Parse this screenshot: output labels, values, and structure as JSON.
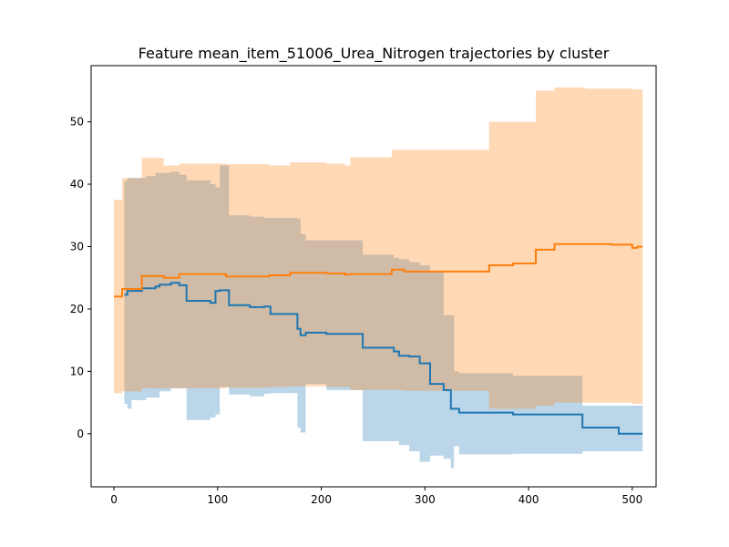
{
  "chart_data": {
    "type": "line",
    "title": "Feature mean_item_51006_Urea_Nitrogen trajectories by cluster",
    "xlabel": "",
    "ylabel": "",
    "xlim": [
      -22,
      523
    ],
    "ylim": [
      -8.5,
      59
    ],
    "xticks": [
      0,
      100,
      200,
      300,
      400,
      500
    ],
    "yticks": [
      0,
      10,
      20,
      30,
      40,
      50
    ],
    "grid": false,
    "series": [
      {
        "color": "#1f77b4",
        "band_color": "#1f77b4",
        "band_opacity": 0.3,
        "steps": [
          {
            "x": 10,
            "mean": 22.3,
            "lower": 4.8,
            "upper": 40.5
          },
          {
            "x": 13,
            "mean": 22.9,
            "lower": 4.0,
            "upper": 41.0
          },
          {
            "x": 17,
            "mean": 22.9,
            "lower": 5.4,
            "upper": 41.0
          },
          {
            "x": 27,
            "mean": 23.3,
            "lower": 5.4,
            "upper": 41.0
          },
          {
            "x": 31,
            "mean": 23.3,
            "lower": 5.8,
            "upper": 41.3
          },
          {
            "x": 40,
            "mean": 23.6,
            "lower": 5.8,
            "upper": 41.8
          },
          {
            "x": 44,
            "mean": 23.9,
            "lower": 6.8,
            "upper": 41.8
          },
          {
            "x": 55,
            "mean": 24.2,
            "lower": 7.3,
            "upper": 42.0
          },
          {
            "x": 63,
            "mean": 23.8,
            "lower": 7.3,
            "upper": 41.5
          },
          {
            "x": 70,
            "mean": 21.3,
            "lower": 2.2,
            "upper": 40.6
          },
          {
            "x": 93,
            "mean": 21.0,
            "lower": 2.6,
            "upper": 40.0
          },
          {
            "x": 98,
            "mean": 22.9,
            "lower": 3.1,
            "upper": 39.5
          },
          {
            "x": 102,
            "mean": 23.0,
            "lower": 7.5,
            "upper": 43.0
          },
          {
            "x": 111,
            "mean": 20.6,
            "lower": 6.3,
            "upper": 35.0
          },
          {
            "x": 131,
            "mean": 20.3,
            "lower": 6.0,
            "upper": 34.8
          },
          {
            "x": 145,
            "mean": 20.4,
            "lower": 6.4,
            "upper": 34.6
          },
          {
            "x": 151,
            "mean": 19.2,
            "lower": 6.5,
            "upper": 34.6
          },
          {
            "x": 177,
            "mean": 16.8,
            "lower": 1.0,
            "upper": 34.5
          },
          {
            "x": 180,
            "mean": 15.8,
            "lower": 0.2,
            "upper": 32.0
          },
          {
            "x": 185,
            "mean": 16.2,
            "lower": 8.0,
            "upper": 31.0
          },
          {
            "x": 205,
            "mean": 16.0,
            "lower": 7.0,
            "upper": 31.0
          },
          {
            "x": 240,
            "mean": 13.8,
            "lower": -1.2,
            "upper": 28.7
          },
          {
            "x": 270,
            "mean": 13.2,
            "lower": -1.2,
            "upper": 28.2
          },
          {
            "x": 275,
            "mean": 12.5,
            "lower": -1.8,
            "upper": 28.0
          },
          {
            "x": 285,
            "mean": 12.4,
            "lower": -2.8,
            "upper": 27.5
          },
          {
            "x": 295,
            "mean": 11.3,
            "lower": -4.5,
            "upper": 27.0
          },
          {
            "x": 305,
            "mean": 8.0,
            "lower": -3.5,
            "upper": 26.0
          },
          {
            "x": 318,
            "mean": 7.0,
            "lower": -4.0,
            "upper": 19.0
          },
          {
            "x": 325,
            "mean": 4.0,
            "lower": -5.5,
            "upper": 19.0
          },
          {
            "x": 328,
            "mean": 4.0,
            "lower": -2.0,
            "upper": 10.0
          },
          {
            "x": 333,
            "mean": 3.4,
            "lower": -3.3,
            "upper": 9.7
          },
          {
            "x": 385,
            "mean": 3.1,
            "lower": -3.2,
            "upper": 9.3
          },
          {
            "x": 452,
            "mean": 1.0,
            "lower": -2.8,
            "upper": 4.5
          },
          {
            "x": 487,
            "mean": 0.0,
            "lower": -2.8,
            "upper": 4.5
          },
          {
            "x": 510,
            "mean": 0.0,
            "lower": 0.0,
            "upper": 0.0
          }
        ]
      },
      {
        "color": "#ff7f0e",
        "band_color": "#ff7f0e",
        "band_opacity": 0.3,
        "steps": [
          {
            "x": 0,
            "mean": 22.0,
            "lower": 6.5,
            "upper": 37.5
          },
          {
            "x": 8,
            "mean": 23.2,
            "lower": 6.8,
            "upper": 41.0
          },
          {
            "x": 27,
            "mean": 25.3,
            "lower": 7.3,
            "upper": 44.2
          },
          {
            "x": 48,
            "mean": 25.0,
            "lower": 7.3,
            "upper": 43.0
          },
          {
            "x": 63,
            "mean": 25.6,
            "lower": 7.3,
            "upper": 43.3
          },
          {
            "x": 108,
            "mean": 25.2,
            "lower": 7.4,
            "upper": 43.2
          },
          {
            "x": 150,
            "mean": 25.4,
            "lower": 7.5,
            "upper": 43.0
          },
          {
            "x": 170,
            "mean": 25.8,
            "lower": 7.6,
            "upper": 43.5
          },
          {
            "x": 205,
            "mean": 25.7,
            "lower": 7.5,
            "upper": 43.3
          },
          {
            "x": 223,
            "mean": 25.5,
            "lower": 7.5,
            "upper": 43.0
          },
          {
            "x": 228,
            "mean": 25.6,
            "lower": 7.0,
            "upper": 44.3
          },
          {
            "x": 268,
            "mean": 26.3,
            "lower": 7.0,
            "upper": 45.5
          },
          {
            "x": 280,
            "mean": 26.0,
            "lower": 6.9,
            "upper": 45.5
          },
          {
            "x": 362,
            "mean": 27.0,
            "lower": 4.0,
            "upper": 50.0
          },
          {
            "x": 385,
            "mean": 27.3,
            "lower": 4.0,
            "upper": 50.0
          },
          {
            "x": 407,
            "mean": 29.5,
            "lower": 4.5,
            "upper": 55.0
          },
          {
            "x": 425,
            "mean": 30.4,
            "lower": 5.0,
            "upper": 55.5
          },
          {
            "x": 455,
            "mean": 30.4,
            "lower": 5.0,
            "upper": 55.3
          },
          {
            "x": 480,
            "mean": 30.3,
            "lower": 5.0,
            "upper": 55.3
          },
          {
            "x": 500,
            "mean": 29.8,
            "lower": 4.8,
            "upper": 55.2
          },
          {
            "x": 505,
            "mean": 30.0,
            "lower": 4.8,
            "upper": 55.2
          },
          {
            "x": 510,
            "mean": 30.0,
            "lower": 4.8,
            "upper": 55.2
          }
        ]
      }
    ]
  }
}
